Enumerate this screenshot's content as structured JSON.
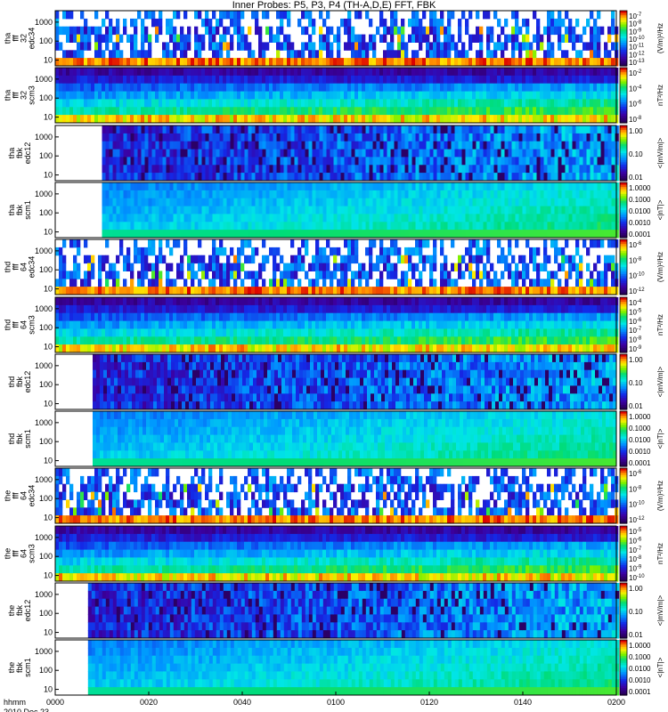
{
  "title": "Inner Probes: P5, P3, P4 (TH-A,D,E) FFT, FBK",
  "footer": {
    "row1": "hhmm",
    "row2": "2010 Dec 23"
  },
  "chart_data": {
    "type": "heatmap",
    "title": "Inner Probes: P5, P3, P4 (TH-A,D,E) FFT, FBK",
    "x_ticks": [
      "0000",
      "0020",
      "0040",
      "0100",
      "0120",
      "0140",
      "0200"
    ],
    "x_range": [
      "00:00",
      "02:00"
    ],
    "panels": [
      {
        "label": [
          "tha",
          "fff",
          "32",
          "edc34"
        ],
        "kind": "fff_e",
        "y_ticks": [
          "1000",
          "100",
          "10"
        ],
        "y_log_range": [
          5,
          4000
        ],
        "colorbar_ticks": [
          "10^-7",
          "10^-8",
          "10^-9",
          "10^-10",
          "10^-11",
          "10^-12",
          "10^-13"
        ],
        "colorbar_label": "(V/m)^2/Hz",
        "data_start_hhmm": "0000"
      },
      {
        "label": [
          "tha",
          "fff",
          "32",
          "scm3"
        ],
        "kind": "fff_b",
        "y_ticks": [
          "1000",
          "100",
          "10"
        ],
        "y_log_range": [
          5,
          4000
        ],
        "colorbar_ticks": [
          "10^-2",
          "10^-4",
          "10^-6",
          "10^-8"
        ],
        "colorbar_label": "nT^2/Hz",
        "data_start_hhmm": "0000"
      },
      {
        "label": [
          "tha",
          "fbk",
          "edc12"
        ],
        "kind": "fbk_e",
        "y_ticks": [
          "1000",
          "100",
          "10"
        ],
        "y_log_range": [
          5,
          4000
        ],
        "colorbar_ticks": [
          "1.00",
          "0.10",
          "0.01"
        ],
        "colorbar_label": "<|mV/m|>",
        "data_start_hhmm": "0010"
      },
      {
        "label": [
          "tha",
          "fbk",
          "scm1"
        ],
        "kind": "fbk_b",
        "y_ticks": [
          "1000",
          "100",
          "10"
        ],
        "y_log_range": [
          5,
          4000
        ],
        "colorbar_ticks": [
          "1.0000",
          "0.1000",
          "0.0100",
          "0.0010",
          "0.0001"
        ],
        "colorbar_label": "<|nT|>",
        "data_start_hhmm": "0010"
      },
      {
        "label": [
          "thd",
          "fff",
          "64",
          "edc34"
        ],
        "kind": "fff_e",
        "y_ticks": [
          "1000",
          "100",
          "10"
        ],
        "y_log_range": [
          5,
          4000
        ],
        "colorbar_ticks": [
          "10^-6",
          "10^-8",
          "10^-10",
          "10^-12"
        ],
        "colorbar_label": "(V/m)^2/Hz",
        "data_start_hhmm": "0000"
      },
      {
        "label": [
          "thd",
          "fff",
          "64",
          "scm3"
        ],
        "kind": "fff_b",
        "y_ticks": [
          "1000",
          "100",
          "10"
        ],
        "y_log_range": [
          5,
          4000
        ],
        "colorbar_ticks": [
          "10^-4",
          "10^-5",
          "10^-6",
          "10^-7",
          "10^-8",
          "10^-9"
        ],
        "colorbar_label": "nT^2/Hz",
        "data_start_hhmm": "0000"
      },
      {
        "label": [
          "thd",
          "fbk",
          "edc12"
        ],
        "kind": "fbk_e",
        "y_ticks": [
          "1000",
          "100",
          "10"
        ],
        "y_log_range": [
          5,
          4000
        ],
        "colorbar_ticks": [
          "1.00",
          "0.10",
          "0.01"
        ],
        "colorbar_label": "<|mV/m|>",
        "data_start_hhmm": "0008"
      },
      {
        "label": [
          "thd",
          "fbk",
          "scm1"
        ],
        "kind": "fbk_b",
        "y_ticks": [
          "1000",
          "100",
          "10"
        ],
        "y_log_range": [
          5,
          4000
        ],
        "colorbar_ticks": [
          "1.0000",
          "0.1000",
          "0.0100",
          "0.0010",
          "0.0001"
        ],
        "colorbar_label": "<|nT|>",
        "data_start_hhmm": "0008"
      },
      {
        "label": [
          "the",
          "fff",
          "64",
          "edc34"
        ],
        "kind": "fff_e",
        "y_ticks": [
          "1000",
          "100",
          "10"
        ],
        "y_log_range": [
          5,
          4000
        ],
        "colorbar_ticks": [
          "10^-6",
          "10^-8",
          "10^-10",
          "10^-12"
        ],
        "colorbar_label": "(V/m)^2/Hz",
        "data_start_hhmm": "0000"
      },
      {
        "label": [
          "the",
          "fff",
          "64",
          "scm3"
        ],
        "kind": "fff_b",
        "y_ticks": [
          "1000",
          "100",
          "10"
        ],
        "y_log_range": [
          5,
          4000
        ],
        "colorbar_ticks": [
          "10^-5",
          "10^-6",
          "10^-7",
          "10^-8",
          "10^-9",
          "10^-10"
        ],
        "colorbar_label": "nT^2/Hz",
        "data_start_hhmm": "0000"
      },
      {
        "label": [
          "the",
          "fbk",
          "edc12"
        ],
        "kind": "fbk_e",
        "y_ticks": [
          "1000",
          "100",
          "10"
        ],
        "y_log_range": [
          5,
          4000
        ],
        "colorbar_ticks": [
          "1.00",
          "0.10",
          "0.01"
        ],
        "colorbar_label": "<|mV/m|>",
        "data_start_hhmm": "0007"
      },
      {
        "label": [
          "the",
          "fbk",
          "scm1"
        ],
        "kind": "fbk_b",
        "y_ticks": [
          "1000",
          "100",
          "10"
        ],
        "y_log_range": [
          5,
          4000
        ],
        "colorbar_ticks": [
          "1.0000",
          "0.1000",
          "0.0100",
          "0.0010",
          "0.0001"
        ],
        "colorbar_label": "<|nT|>",
        "data_start_hhmm": "0007"
      }
    ]
  }
}
